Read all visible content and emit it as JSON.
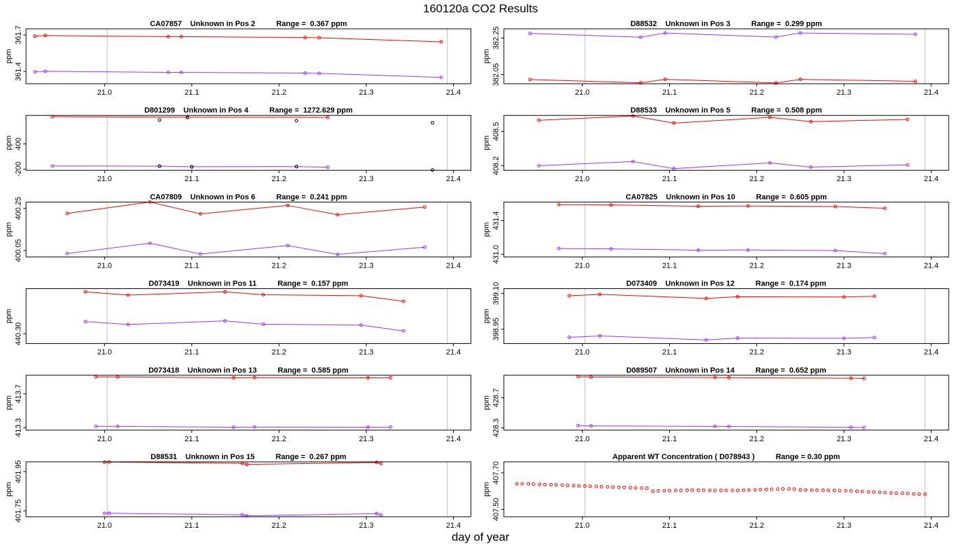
{
  "page": {
    "title": "160120a  CO2 Results",
    "xlabel": "day of year"
  },
  "colors": {
    "series_a": "#ff0000",
    "series_b": "#9933ff",
    "ref_line": "#bebebe",
    "axis": "#000000",
    "bg": "#ffffff"
  },
  "chart_data": [
    {
      "type": "line",
      "title": "CA07857    Unknown in Pos 2          Range =  0.367 ppm",
      "ylabel": "ppm",
      "xlim": [
        20.91,
        21.42
      ],
      "ylim": [
        361.3,
        361.75
      ],
      "yticks": [
        361.4,
        361.7
      ],
      "ytick_labels": [
        "361.4",
        "361.7"
      ],
      "xticks": [
        21.0,
        21.1,
        21.2,
        21.3,
        21.4
      ],
      "xtick_labels": [
        "21.0",
        "21.1",
        "21.2",
        "21.3",
        "21.4"
      ],
      "vlines": [
        21.003,
        21.393
      ],
      "series": [
        {
          "name": "a",
          "color": "#ff0000",
          "x": [
            20.92,
            20.932,
            21.073,
            21.088,
            21.23,
            21.246,
            21.386
          ],
          "y": [
            361.69,
            361.695,
            361.686,
            361.686,
            361.679,
            361.677,
            361.643
          ]
        },
        {
          "name": "b",
          "color": "#9933ff",
          "x": [
            20.92,
            20.932,
            21.073,
            21.088,
            21.23,
            21.246,
            21.386
          ],
          "y": [
            361.398,
            361.402,
            361.393,
            361.393,
            361.387,
            361.385,
            361.352
          ]
        }
      ]
    },
    {
      "type": "line",
      "title": "D88532    Unknown in Pos 3          Range =  0.299 ppm",
      "ylabel": "ppm",
      "xlim": [
        20.91,
        21.42
      ],
      "ylim": [
        382.0,
        382.3
      ],
      "yticks": [
        382.05,
        382.25
      ],
      "ytick_labels": [
        "382.05",
        "382.25"
      ],
      "xticks": [
        21.0,
        21.1,
        21.2,
        21.3,
        21.4
      ],
      "xtick_labels": [
        "21.0",
        "21.1",
        "21.2",
        "21.3",
        "21.4"
      ],
      "vlines": [
        21.003,
        21.393
      ],
      "series": [
        {
          "name": "a",
          "color": "#9933ff",
          "x": [
            20.94,
            21.067,
            21.095,
            21.222,
            21.25,
            21.382
          ],
          "y": [
            382.275,
            382.254,
            382.277,
            382.255,
            382.277,
            382.27
          ]
        },
        {
          "name": "b",
          "color": "#ff0000",
          "x": [
            20.94,
            21.067,
            21.095,
            21.222,
            21.25,
            21.382
          ],
          "y": [
            382.023,
            382.005,
            382.024,
            382.004,
            382.024,
            382.013
          ]
        }
      ]
    },
    {
      "type": "line",
      "title": "D801299    Unknown in Pos 4          Range =  1272.629 ppm",
      "ylabel": "ppm",
      "xlim": [
        20.91,
        21.42
      ],
      "ylim": [
        -230,
        1080
      ],
      "yticks": [
        -200,
        400
      ],
      "ytick_labels": [
        "-200",
        "400"
      ],
      "xticks": [
        21.0,
        21.1,
        21.2,
        21.3,
        21.4
      ],
      "xtick_labels": [
        "21.0",
        "21.1",
        "21.2",
        "21.3",
        "21.4"
      ],
      "vlines": [
        21.003,
        21.393
      ],
      "series": [
        {
          "name": "a",
          "color": "#ff0000",
          "x": [
            20.94,
            21.095,
            21.256
          ],
          "y": [
            1050,
            1037,
            1033
          ]
        },
        {
          "name": "b",
          "color": "#9933ff",
          "x": [
            20.94,
            21.063,
            21.1,
            21.22,
            21.256
          ],
          "y": [
            -126,
            -130,
            -143,
            -140,
            -156
          ]
        },
        {
          "name": "c",
          "color": "#000000",
          "lines": false,
          "x": [
            21.063,
            21.095,
            21.22,
            21.376
          ],
          "y": [
            970,
            1030,
            953,
            906
          ]
        },
        {
          "name": "d",
          "color": "#000000",
          "lines": false,
          "x": [
            21.063,
            21.1,
            21.22,
            21.376
          ],
          "y": [
            -132,
            -148,
            -141,
            -222
          ]
        }
      ]
    },
    {
      "type": "line",
      "title": "D88533    Unknown in Pos 5          Range =  0.508 ppm",
      "ylabel": "ppm",
      "xlim": [
        20.91,
        21.42
      ],
      "ylim": [
        408.16,
        408.64
      ],
      "yticks": [
        408.2,
        408.5
      ],
      "ytick_labels": [
        "408.2",
        "408.5"
      ],
      "xticks": [
        21.0,
        21.1,
        21.2,
        21.3,
        21.4
      ],
      "xtick_labels": [
        "21.0",
        "21.1",
        "21.2",
        "21.3",
        "21.4"
      ],
      "vlines": [
        21.003,
        21.393
      ],
      "series": [
        {
          "name": "a",
          "color": "#ff0000",
          "x": [
            20.95,
            21.058,
            21.105,
            21.215,
            21.262,
            21.373
          ],
          "y": [
            408.598,
            408.635,
            408.573,
            408.623,
            408.586,
            408.605
          ]
        },
        {
          "name": "b",
          "color": "#9933ff",
          "x": [
            20.95,
            21.058,
            21.105,
            21.215,
            21.262,
            21.373
          ],
          "y": [
            408.2,
            408.237,
            408.175,
            408.225,
            408.188,
            408.208
          ]
        }
      ]
    },
    {
      "type": "line",
      "title": "CA07809    Unknown in Pos 6          Range =  0.241 ppm",
      "ylabel": "ppm",
      "xlim": [
        20.91,
        21.42
      ],
      "ylim": [
        400.02,
        400.28
      ],
      "yticks": [
        400.05,
        400.25
      ],
      "ytick_labels": [
        "400.05",
        "400.25"
      ],
      "xticks": [
        21.0,
        21.1,
        21.2,
        21.3,
        21.4
      ],
      "xtick_labels": [
        "21.0",
        "21.1",
        "21.2",
        "21.3",
        "21.4"
      ],
      "vlines": [
        21.003,
        21.393
      ],
      "series": [
        {
          "name": "a",
          "color": "#ff0000",
          "x": [
            20.957,
            21.052,
            21.11,
            21.21,
            21.267,
            21.367
          ],
          "y": [
            400.226,
            400.28,
            400.224,
            400.264,
            400.22,
            400.256
          ]
        },
        {
          "name": "b",
          "color": "#9933ff",
          "x": [
            20.957,
            21.052,
            21.11,
            21.21,
            21.267,
            21.367
          ],
          "y": [
            400.036,
            400.085,
            400.034,
            400.074,
            400.032,
            400.066
          ]
        }
      ]
    },
    {
      "type": "line",
      "title": "CA07825    Unknown in Pos 10          Range =  0.605 ppm",
      "ylabel": "ppm",
      "xlim": [
        20.91,
        21.42
      ],
      "ylim": [
        430.97,
        431.62
      ],
      "yticks": [
        431.0,
        431.4
      ],
      "ytick_labels": [
        "431.0",
        "431.4"
      ],
      "xticks": [
        21.0,
        21.1,
        21.2,
        21.3,
        21.4
      ],
      "xtick_labels": [
        "21.0",
        "21.1",
        "21.2",
        "21.3",
        "21.4"
      ],
      "vlines": [
        21.003,
        21.393
      ],
      "series": [
        {
          "name": "a",
          "color": "#ff0000",
          "x": [
            20.973,
            21.033,
            21.133,
            21.19,
            21.29,
            21.347
          ],
          "y": [
            431.59,
            431.586,
            431.57,
            431.573,
            431.566,
            431.546
          ]
        },
        {
          "name": "b",
          "color": "#9933ff",
          "x": [
            20.973,
            21.033,
            21.133,
            21.19,
            21.29,
            21.347
          ],
          "y": [
            431.07,
            431.066,
            431.05,
            431.052,
            431.045,
            431.01
          ]
        }
      ]
    },
    {
      "type": "line",
      "title": "D073419    Unknown in Pos 11          Range =  0.157 ppm",
      "ylabel": "ppm",
      "xlim": [
        20.91,
        21.42
      ],
      "ylim": [
        440.27,
        440.44
      ],
      "yticks": [
        440.3
      ],
      "ytick_labels": [
        "440.30"
      ],
      "xticks": [
        21.0,
        21.1,
        21.2,
        21.3,
        21.4
      ],
      "xtick_labels": [
        "21.0",
        "21.1",
        "21.2",
        "21.3",
        "21.4"
      ],
      "vlines": [
        21.003,
        21.393
      ],
      "series": [
        {
          "name": "a",
          "color": "#ff0000",
          "x": [
            20.978,
            21.027,
            21.138,
            21.182,
            21.294,
            21.343
          ],
          "y": [
            440.43,
            440.42,
            440.43,
            440.421,
            440.418,
            440.401
          ]
        },
        {
          "name": "b",
          "color": "#9933ff",
          "x": [
            20.978,
            21.027,
            21.138,
            21.182,
            21.294,
            21.343
          ],
          "y": [
            440.338,
            440.329,
            440.34,
            440.33,
            440.327,
            440.309
          ]
        }
      ]
    },
    {
      "type": "line",
      "title": "D073409    Unknown in Pos 12          Range =  0.174 ppm",
      "ylabel": "ppm",
      "xlim": [
        20.91,
        21.42
      ],
      "ylim": [
        398.89,
        399.12
      ],
      "yticks": [
        398.95,
        399.1
      ],
      "ytick_labels": [
        "398.95",
        "399.10"
      ],
      "xticks": [
        21.0,
        21.1,
        21.2,
        21.3,
        21.4
      ],
      "xtick_labels": [
        "21.0",
        "21.1",
        "21.2",
        "21.3",
        "21.4"
      ],
      "vlines": [
        21.003,
        21.393
      ],
      "series": [
        {
          "name": "a",
          "color": "#ff0000",
          "x": [
            20.985,
            21.02,
            21.142,
            21.178,
            21.3,
            21.335
          ],
          "y": [
            399.09,
            399.096,
            399.079,
            399.086,
            399.085,
            399.088
          ]
        },
        {
          "name": "b",
          "color": "#9933ff",
          "x": [
            20.985,
            21.02,
            21.142,
            21.178,
            21.3,
            21.335
          ],
          "y": [
            398.916,
            398.922,
            398.905,
            398.913,
            398.912,
            398.915
          ]
        }
      ]
    },
    {
      "type": "line",
      "title": "D073418    Unknown in Pos 13          Range =  0.585 ppm",
      "ylabel": "ppm",
      "xlim": [
        20.91,
        21.42
      ],
      "ylim": [
        413.27,
        413.92
      ],
      "yticks": [
        413.3,
        413.7
      ],
      "ytick_labels": [
        "413.3",
        "413.7"
      ],
      "xticks": [
        21.0,
        21.1,
        21.2,
        21.3,
        21.4
      ],
      "xtick_labels": [
        "21.0",
        "21.1",
        "21.2",
        "21.3",
        "21.4"
      ],
      "vlines": [
        21.003,
        21.393
      ],
      "series": [
        {
          "name": "a",
          "color": "#ff0000",
          "x": [
            20.99,
            21.015,
            21.148,
            21.172,
            21.302,
            21.328
          ],
          "y": [
            413.9,
            413.9,
            413.89,
            413.892,
            413.89,
            413.891
          ]
        },
        {
          "name": "b",
          "color": "#9933ff",
          "x": [
            20.99,
            21.015,
            21.148,
            21.172,
            21.302,
            21.328
          ],
          "y": [
            413.315,
            413.314,
            413.305,
            413.307,
            413.305,
            413.306
          ]
        }
      ]
    },
    {
      "type": "line",
      "title": "D089507    Unknown in Pos 14          Range =  0.652 ppm",
      "ylabel": "ppm",
      "xlim": [
        20.91,
        21.42
      ],
      "ylim": [
        428.27,
        429.0
      ],
      "yticks": [
        428.3,
        428.7
      ],
      "ytick_labels": [
        "428.3",
        "428.7"
      ],
      "xticks": [
        21.0,
        21.1,
        21.2,
        21.3,
        21.4
      ],
      "xtick_labels": [
        "21.0",
        "21.1",
        "21.2",
        "21.3",
        "21.4"
      ],
      "vlines": [
        21.003,
        21.393
      ],
      "series": [
        {
          "name": "a",
          "color": "#ff0000",
          "x": [
            20.995,
            21.01,
            21.152,
            21.168,
            21.308,
            21.323
          ],
          "y": [
            428.98,
            428.976,
            428.97,
            428.968,
            428.96,
            428.957
          ]
        },
        {
          "name": "b",
          "color": "#9933ff",
          "x": [
            20.995,
            21.01,
            21.152,
            21.168,
            21.308,
            21.323
          ],
          "y": [
            428.33,
            428.326,
            428.32,
            428.318,
            428.308,
            428.305
          ]
        }
      ]
    },
    {
      "type": "line",
      "title": "D88531    Unknown in Pos 15          Range =  0.267 ppm",
      "ylabel": "ppm",
      "xlim": [
        20.91,
        21.42
      ],
      "ylim": [
        401.72,
        402.0
      ],
      "yticks": [
        401.75,
        401.95
      ],
      "ytick_labels": [
        "401.75",
        "401.95"
      ],
      "xticks": [
        21.0,
        21.1,
        21.2,
        21.3,
        21.4
      ],
      "xtick_labels": [
        "21.0",
        "21.1",
        "21.2",
        "21.3",
        "21.4"
      ],
      "vlines": [
        21.003,
        21.393
      ],
      "series": [
        {
          "name": "a",
          "color": "#ff0000",
          "x": [
            21.0,
            21.005,
            21.158,
            21.163,
            21.312,
            21.317
          ],
          "y": [
            401.998,
            401.999,
            401.992,
            401.987,
            401.997,
            401.991
          ]
        },
        {
          "name": "b",
          "color": "#9933ff",
          "x": [
            21.0,
            21.005,
            21.158,
            21.163,
            21.312,
            21.317
          ],
          "y": [
            401.737,
            401.738,
            401.73,
            401.725,
            401.736,
            401.73
          ]
        }
      ]
    },
    {
      "type": "scatter",
      "title": "Apparent WT Concentration ( D078943 )          Range = 0.30 ppm",
      "ylabel": "ppm",
      "xlim": [
        20.91,
        21.42
      ],
      "ylim": [
        407.46,
        407.76
      ],
      "yticks": [
        407.5,
        407.7
      ],
      "ytick_labels": [
        "407.50",
        "407.70"
      ],
      "xticks": [
        21.0,
        21.1,
        21.2,
        21.3,
        21.4
      ],
      "xtick_labels": [
        "21.0",
        "21.1",
        "21.2",
        "21.3",
        "21.4"
      ],
      "vlines": [
        21.003,
        21.393
      ],
      "series": [
        {
          "name": "wt",
          "color": "#ff0000",
          "lines": false,
          "x": [
            20.925,
            20.931,
            20.938,
            20.944,
            20.951,
            20.957,
            20.964,
            20.97,
            20.977,
            20.983,
            20.99,
            20.996,
            21.003,
            21.009,
            21.016,
            21.022,
            21.029,
            21.035,
            21.042,
            21.048,
            21.055,
            21.061,
            21.068,
            21.074,
            21.081,
            21.087,
            21.094,
            21.1,
            21.107,
            21.113,
            21.12,
            21.126,
            21.133,
            21.139,
            21.146,
            21.152,
            21.159,
            21.165,
            21.172,
            21.178,
            21.185,
            21.191,
            21.198,
            21.204,
            21.211,
            21.217,
            21.224,
            21.23,
            21.237,
            21.243,
            21.25,
            21.256,
            21.263,
            21.269,
            21.276,
            21.282,
            21.289,
            21.295,
            21.302,
            21.308,
            21.315,
            21.321,
            21.328,
            21.334,
            21.341,
            21.347,
            21.354,
            21.36,
            21.367,
            21.373,
            21.38,
            21.386,
            21.393
          ],
          "y": [
            407.64,
            407.64,
            407.64,
            407.638,
            407.637,
            407.636,
            407.635,
            407.634,
            407.633,
            407.631,
            407.63,
            407.629,
            407.628,
            407.626,
            407.625,
            407.624,
            407.623,
            407.622,
            407.621,
            407.62,
            407.619,
            407.618,
            407.617,
            407.616,
            407.6,
            407.601,
            407.602,
            407.603,
            407.604,
            407.604,
            407.605,
            407.605,
            407.605,
            407.605,
            407.604,
            407.604,
            407.604,
            407.604,
            407.604,
            407.604,
            407.605,
            407.606,
            407.607,
            407.608,
            407.609,
            407.61,
            407.611,
            407.612,
            407.612,
            407.611,
            407.607,
            407.606,
            407.605,
            407.605,
            407.605,
            407.604,
            407.604,
            407.603,
            407.602,
            407.601,
            407.599,
            407.598,
            407.596,
            407.595,
            407.593,
            407.592,
            407.59,
            407.589,
            407.588,
            407.587,
            407.585,
            407.584,
            407.583
          ]
        }
      ]
    }
  ]
}
